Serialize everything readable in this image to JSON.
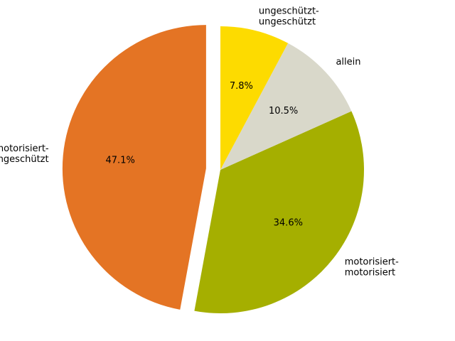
{
  "chart_data": {
    "type": "pie",
    "start_angle_deg": 90,
    "direction": "counterclockwise",
    "slices": [
      {
        "label_lines": [
          "motorisiert-",
          "ungeschützt"
        ],
        "value": 47.1,
        "pct_label": "47.1%",
        "color": "#e47424",
        "explode": true
      },
      {
        "label_lines": [
          "motorisiert-",
          "motorisiert"
        ],
        "value": 34.6,
        "pct_label": "34.6%",
        "color": "#a5af00",
        "explode": false
      },
      {
        "label_lines": [
          "allein"
        ],
        "value": 10.5,
        "pct_label": "10.5%",
        "color": "#d9d8ca",
        "explode": false
      },
      {
        "label_lines": [
          "ungeschützt-",
          "ungeschützt"
        ],
        "value": 7.8,
        "pct_label": "7.8%",
        "color": "#fddb00",
        "explode": false
      }
    ]
  }
}
